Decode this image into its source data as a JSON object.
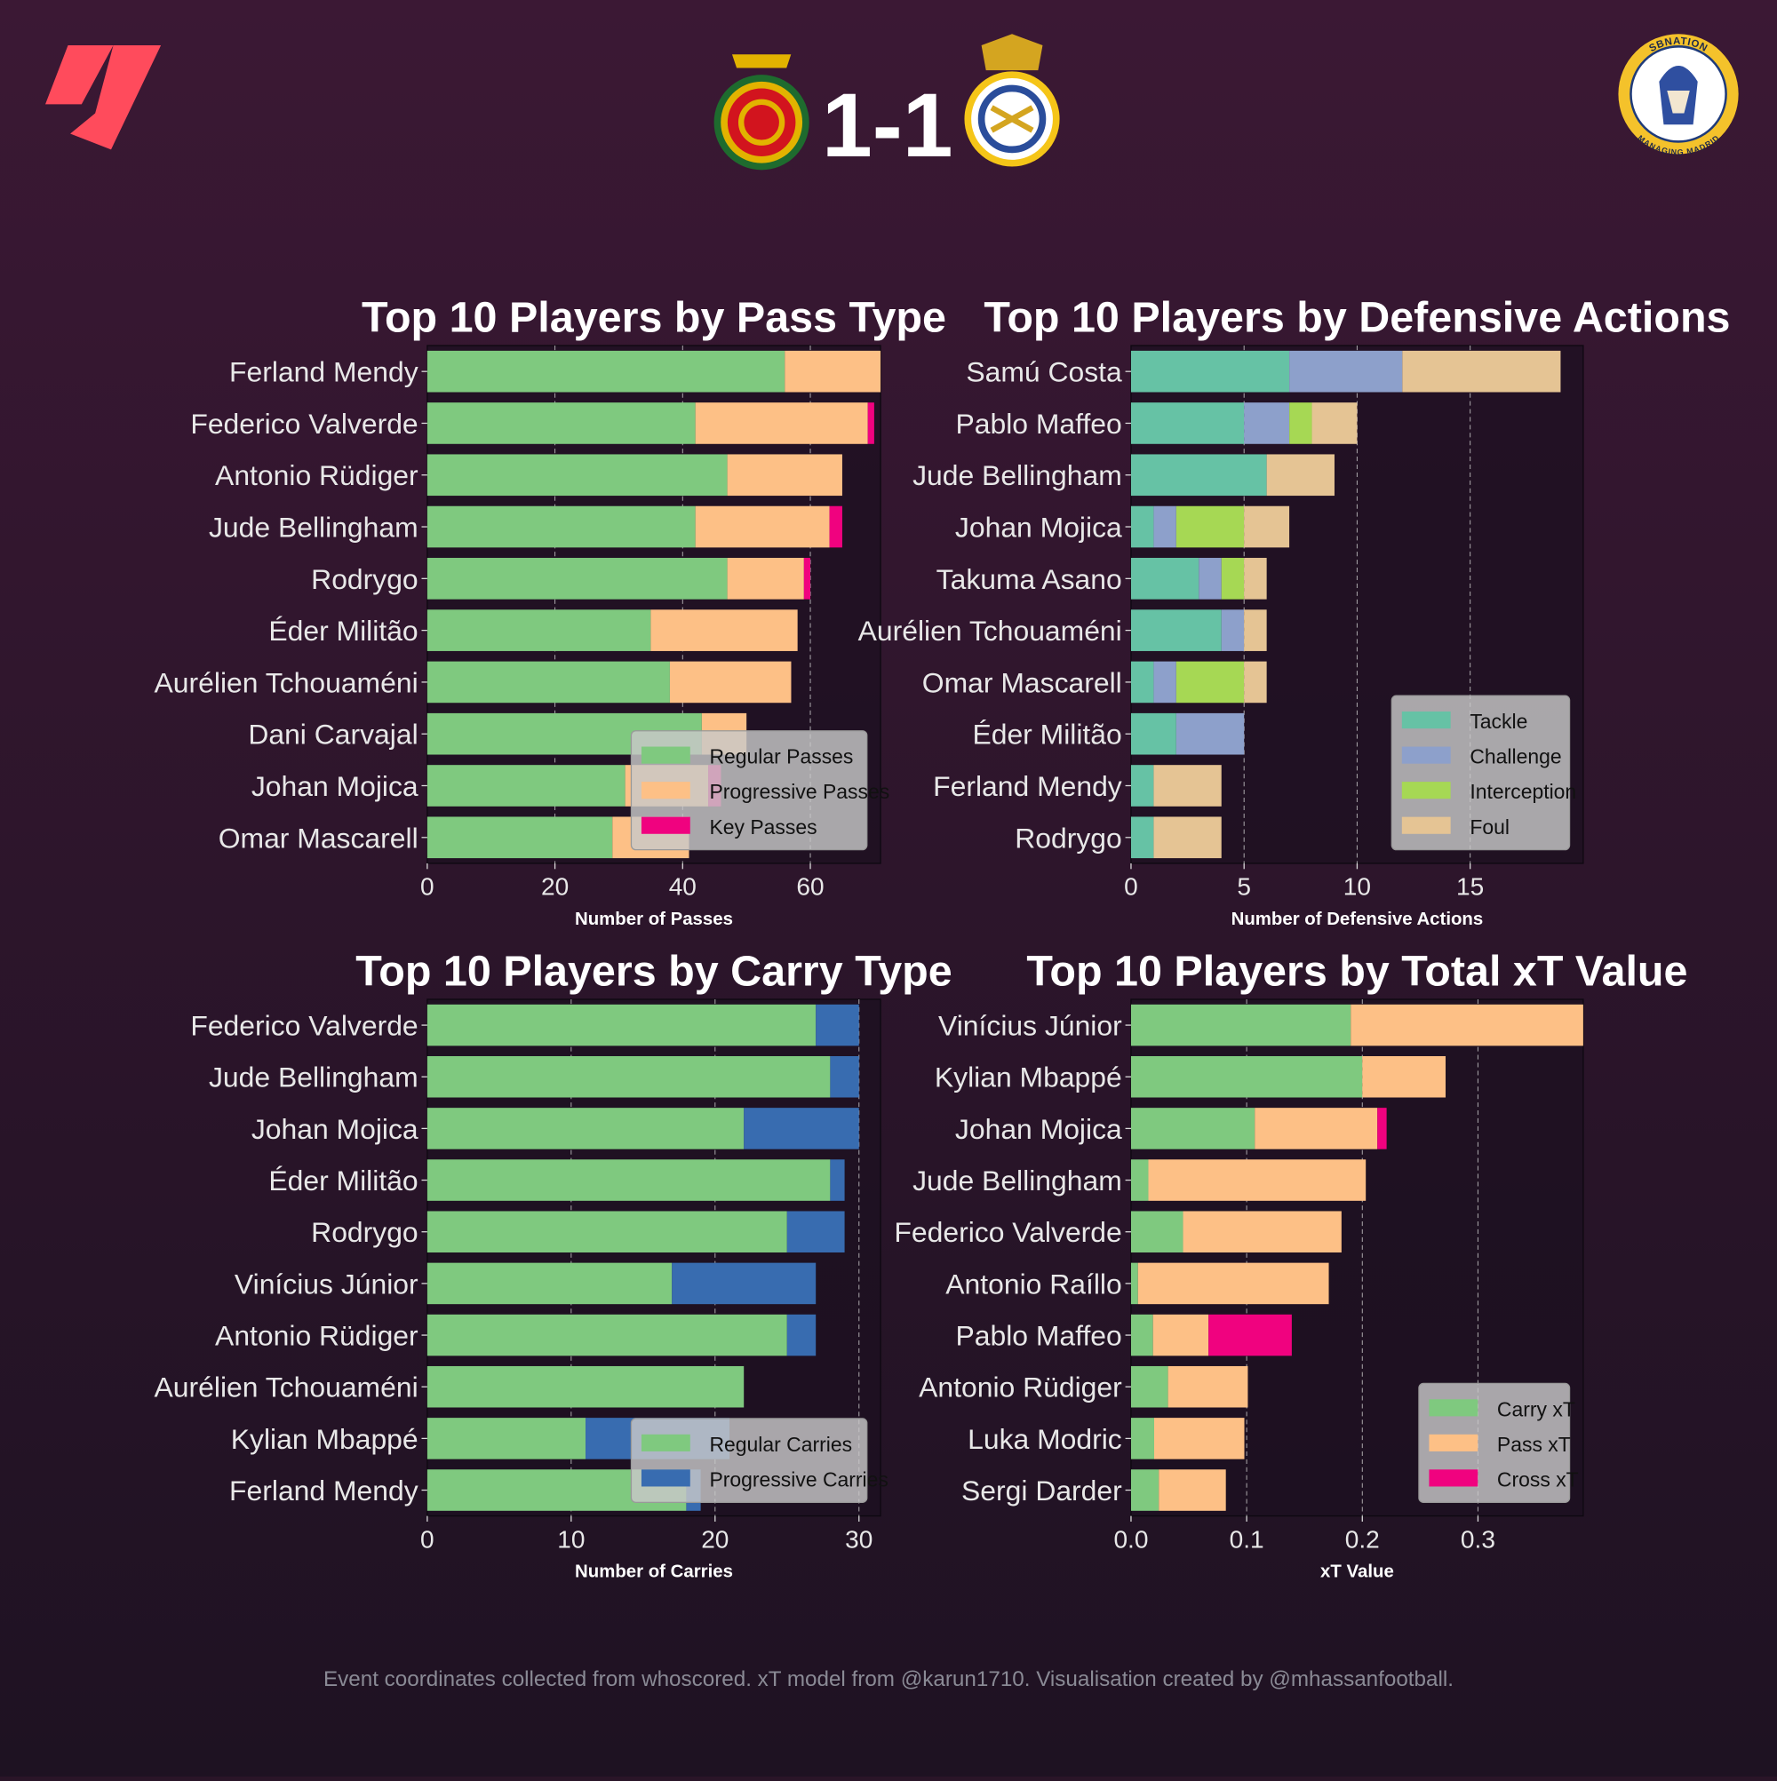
{
  "header": {
    "score": "1-1",
    "home_team_crest": "rcd-mallorca-crest",
    "away_team_crest": "real-madrid-crest",
    "league_logo": "laliga-logo",
    "publisher_logo": "sbnation-managing-madrid-logo",
    "publisher_logo_text": [
      "SBNATION",
      "MANAGING MADRID"
    ]
  },
  "footer": "Event coordinates collected from whoscored. xT model from @karun1710. Visualisation created by @mhassanfootball.",
  "colors": {
    "background": "#2a1528",
    "axes_bg": "#1c1020",
    "text": "#e8e8e8",
    "legend_bg": "#c8c8c8"
  },
  "chart_data": [
    {
      "type": "bar",
      "orientation": "horizontal-stacked",
      "title": "Top 10 Players by Pass Type",
      "xlabel": "Number of Passes",
      "xlim": [
        0,
        71
      ],
      "xticks": [
        0,
        20,
        40,
        60
      ],
      "tick_labels": [
        "0",
        "20",
        "40",
        "60"
      ],
      "grid": "x-dashed",
      "legend": "bottom-right",
      "categories": [
        "Ferland Mendy",
        "Federico Valverde",
        "Antonio Rüdiger",
        "Jude Bellingham",
        "Rodrygo",
        "Éder Militão",
        "Aurélien Tchouaméni",
        "Dani Carvajal",
        "Johan Mojica",
        "Omar Mascarell"
      ],
      "series": [
        {
          "name": "Regular Passes",
          "color": "#7fc97f",
          "values": [
            56,
            42,
            47,
            42,
            47,
            35,
            38,
            43,
            31,
            29
          ]
        },
        {
          "name": "Progressive Passes",
          "color": "#fdc086",
          "values": [
            15,
            27,
            18,
            21,
            12,
            23,
            19,
            7,
            13,
            12
          ]
        },
        {
          "name": "Key Passes",
          "color": "#f0027f",
          "values": [
            0,
            1,
            0,
            2,
            1,
            0,
            0,
            0,
            2,
            0
          ]
        }
      ]
    },
    {
      "type": "bar",
      "orientation": "horizontal-stacked",
      "title": "Top 10 Players by Defensive Actions",
      "xlabel": "Number of Defensive Actions",
      "xlim": [
        0,
        20
      ],
      "xticks": [
        0,
        5,
        10,
        15
      ],
      "tick_labels": [
        "0",
        "5",
        "10",
        "15"
      ],
      "grid": "x-dashed",
      "legend": "bottom-right",
      "categories": [
        "Samú Costa",
        "Pablo Maffeo",
        "Jude Bellingham",
        "Johan Mojica",
        "Takuma Asano",
        "Aurélien Tchouaméni",
        "Omar Mascarell",
        "Éder Militão",
        "Ferland Mendy",
        "Rodrygo"
      ],
      "series": [
        {
          "name": "Tackle",
          "color": "#66c2a5",
          "values": [
            7,
            5,
            6,
            1,
            3,
            4,
            1,
            2,
            1,
            1
          ]
        },
        {
          "name": "Challenge",
          "color": "#8da0cb",
          "values": [
            5,
            2,
            0,
            1,
            1,
            1,
            1,
            3,
            0,
            0
          ]
        },
        {
          "name": "Interception",
          "color": "#a6d854",
          "values": [
            0,
            1,
            0,
            3,
            1,
            0,
            3,
            0,
            0,
            0
          ]
        },
        {
          "name": "Foul",
          "color": "#e5c494",
          "values": [
            7,
            2,
            3,
            2,
            1,
            1,
            1,
            0,
            3,
            3
          ]
        }
      ]
    },
    {
      "type": "bar",
      "orientation": "horizontal-stacked",
      "title": "Top 10 Players by Carry Type",
      "xlabel": "Number of Carries",
      "xlim": [
        0,
        31.5
      ],
      "xticks": [
        0,
        10,
        20,
        30
      ],
      "tick_labels": [
        "0",
        "10",
        "20",
        "30"
      ],
      "grid": "x-dashed",
      "legend": "bottom-right",
      "categories": [
        "Federico Valverde",
        "Jude Bellingham",
        "Johan Mojica",
        "Éder Militão",
        "Rodrygo",
        "Vinícius Júnior",
        "Antonio Rüdiger",
        "Aurélien Tchouaméni",
        "Kylian Mbappé",
        "Ferland Mendy"
      ],
      "series": [
        {
          "name": "Regular Carries",
          "color": "#7fc97f",
          "values": [
            27,
            28,
            22,
            28,
            25,
            17,
            25,
            22,
            11,
            18
          ]
        },
        {
          "name": "Progressive Carries",
          "color": "#386cb0",
          "values": [
            3,
            2,
            8,
            1,
            4,
            10,
            2,
            0,
            10,
            1
          ]
        }
      ]
    },
    {
      "type": "bar",
      "orientation": "horizontal-stacked",
      "title": "Top 10 Players by Total xT Value",
      "xlabel": "xT Value",
      "xlim": [
        0,
        0.391
      ],
      "xticks": [
        0,
        0.1,
        0.2,
        0.3
      ],
      "tick_labels": [
        "0.0",
        "0.1",
        "0.2",
        "0.3"
      ],
      "grid": "x-dashed",
      "legend": "bottom-right",
      "categories": [
        "Vinícius Júnior",
        "Kylian Mbappé",
        "Johan Mojica",
        "Jude Bellingham",
        "Federico Valverde",
        "Antonio Raíllo",
        "Pablo Maffeo",
        "Antonio Rüdiger",
        "Luka Modric",
        "Sergi Darder"
      ],
      "series": [
        {
          "name": "Carry xT",
          "color": "#7fc97f",
          "values": [
            0.19,
            0.2,
            0.107,
            0.015,
            0.045,
            0.006,
            0.019,
            0.032,
            0.02,
            0.024
          ]
        },
        {
          "name": "Pass xT",
          "color": "#fdc086",
          "values": [
            0.201,
            0.072,
            0.106,
            0.188,
            0.137,
            0.165,
            0.048,
            0.069,
            0.078,
            0.058
          ]
        },
        {
          "name": "Cross xT",
          "color": "#f0027f",
          "values": [
            0,
            0,
            0.008,
            0,
            0,
            0,
            0.072,
            0,
            0,
            0
          ]
        }
      ]
    }
  ]
}
